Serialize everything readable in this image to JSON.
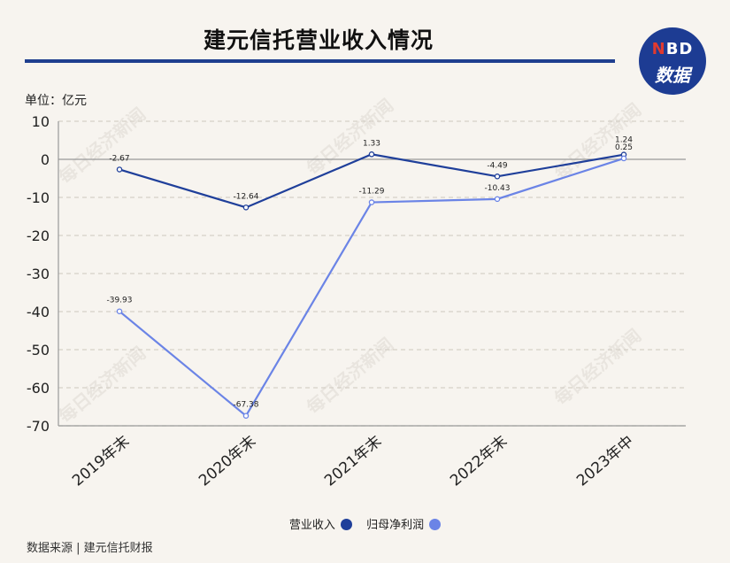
{
  "title": "建元信托营业收入情况",
  "logo": {
    "line1_n": "N",
    "line1_rest": "BD",
    "line2": "数据"
  },
  "unit_label": "单位：亿元",
  "watermark": "每日经济新闻",
  "source": "数据来源 | 建元信托财报",
  "colors": {
    "background": "#f7f4ef",
    "revenue": "#1f3f9a",
    "net_profit": "#6b84e6",
    "grid": "#d5d0c8",
    "axis": "#999999",
    "brand": "#1d3c93"
  },
  "chart_data": {
    "type": "line",
    "categories": [
      "2019年末",
      "2020年末",
      "2021年末",
      "2022年末",
      "2023年中"
    ],
    "series": [
      {
        "name": "营业收入",
        "values": [
          -2.67,
          -12.64,
          1.33,
          -4.49,
          1.24
        ],
        "labels": [
          "-2.67",
          "-12.64",
          "1.33",
          "-4.49",
          "1.24"
        ],
        "color": "#1f3f9a"
      },
      {
        "name": "归母净利润",
        "values": [
          -39.93,
          -67.38,
          -11.29,
          -10.43,
          0.25
        ],
        "labels": [
          "-39.93",
          "-67.38",
          "-11.29",
          "-10.43",
          "0.25"
        ],
        "color": "#6b84e6"
      }
    ],
    "y_ticks": [
      10,
      0,
      -10,
      -20,
      -30,
      -40,
      -50,
      -60,
      -70
    ],
    "ylim": [
      -70,
      10
    ],
    "grid": true,
    "legend_position": "bottom-center"
  }
}
